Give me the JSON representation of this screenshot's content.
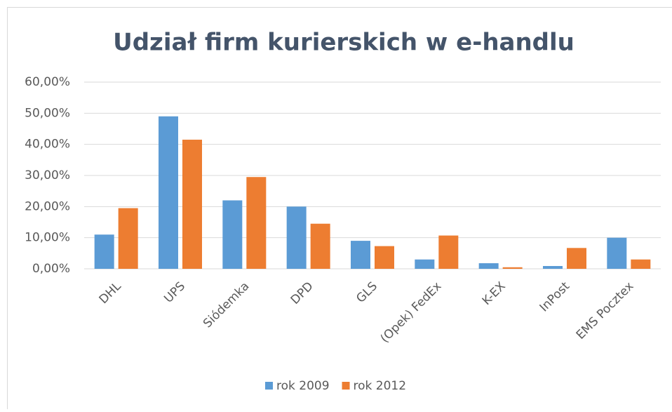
{
  "chart_data": {
    "type": "bar",
    "title": "Udział firm kurierskich w e-handlu",
    "categories": [
      "DHL",
      "UPS",
      "Siódemka",
      "DPD",
      "GLS",
      "(Opek) FedEx",
      "K-EX",
      "InPost",
      "EMS Pocztex"
    ],
    "series": [
      {
        "name": "rok 2009",
        "color": "#5b9bd5",
        "values": [
          11,
          49,
          22,
          20,
          9,
          3,
          1.8,
          0.9,
          10
        ]
      },
      {
        "name": "rok 2012",
        "color": "#ed7d31",
        "values": [
          19.5,
          41.5,
          29.5,
          14.5,
          7.3,
          10.7,
          0.5,
          6.7,
          3
        ]
      }
    ],
    "ylim": [
      0,
      60
    ],
    "yticks": [
      {
        "value": 0,
        "label": "0,00%"
      },
      {
        "value": 10,
        "label": "10,00%"
      },
      {
        "value": 20,
        "label": "20,00%"
      },
      {
        "value": 30,
        "label": "30,00%"
      },
      {
        "value": 40,
        "label": "40,00%"
      },
      {
        "value": 50,
        "label": "50,00%"
      },
      {
        "value": 60,
        "label": "60,00%"
      }
    ],
    "grid": true,
    "legend": "bottom"
  }
}
